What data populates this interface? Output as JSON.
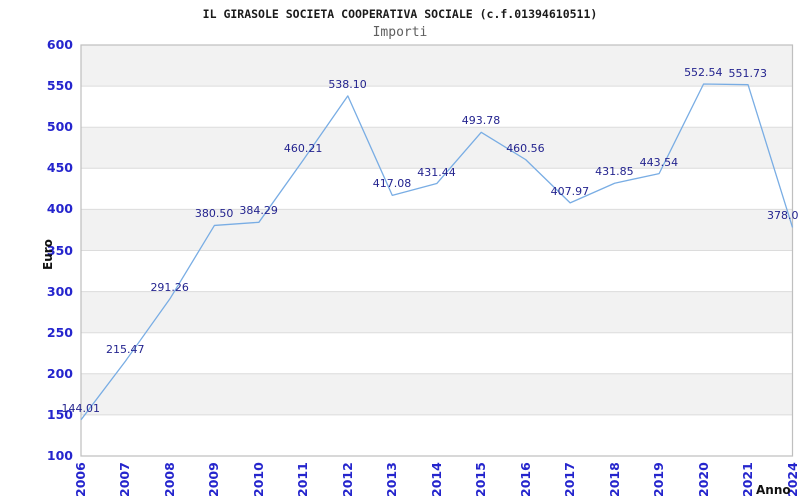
{
  "chart_data": {
    "type": "line",
    "title": "IL GIRASOLE SOCIETA COOPERATIVA SOCIALE (c.f.01394610511)",
    "subtitle": "Importi",
    "xlabel": "Anno",
    "ylabel": "Euro",
    "categories": [
      "2006",
      "2007",
      "2008",
      "2009",
      "2010",
      "2011",
      "2012",
      "2013",
      "2014",
      "2015",
      "2016",
      "2017",
      "2018",
      "2019",
      "2020",
      "2021",
      "2024"
    ],
    "values": [
      144.01,
      215.47,
      291.26,
      380.5,
      384.29,
      460.21,
      538.1,
      417.08,
      431.44,
      493.78,
      460.56,
      407.97,
      431.85,
      443.54,
      552.54,
      551.73,
      378.0
    ],
    "value_labels": [
      "144.01",
      "215.47",
      "291.26",
      "380.50",
      "384.29",
      "460.21",
      "538.10",
      "417.08",
      "431.44",
      "493.78",
      "460.56",
      "407.97",
      "431.85",
      "443.54",
      "552.54",
      "551.73",
      "378.0"
    ],
    "ylim": [
      100,
      600
    ],
    "ytick_step": 50,
    "ytick_labels": [
      "100",
      "150",
      "200",
      "250",
      "300",
      "350",
      "400",
      "450",
      "500",
      "550",
      "600"
    ],
    "legend": "none",
    "grid": "alternating horizontal bands",
    "markers": "none",
    "colors": {
      "line": "#79ade4",
      "tick_label": "#2525cd",
      "value_label": "#24248f",
      "band_gray": "#f2f2f2",
      "band_white": "#ffffff",
      "grid_line": "#dcdcdc",
      "plot_border": "#bfbfbf",
      "title": "#1a1a1a",
      "subtitle": "#5f5f5f",
      "axis_title": "#111111",
      "background": "#ffffff"
    }
  }
}
